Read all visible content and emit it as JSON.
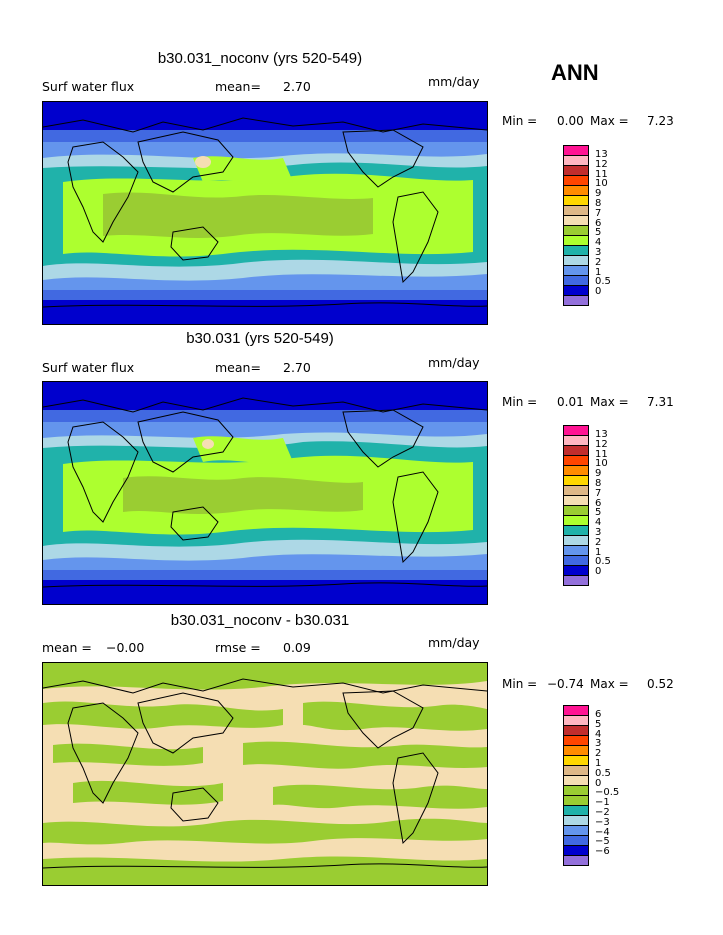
{
  "season_label": "ANN",
  "units": "mm/day",
  "colors": {
    "land_line": "#000000"
  },
  "panels": [
    {
      "title": "b30.031_noconv (yrs 520-549)",
      "left_label": "Surf water flux",
      "stat_label": "mean=",
      "stat_value": "2.70",
      "units": "mm/day",
      "min_label": "Min =",
      "min_value": "0.00",
      "max_label": "Max =",
      "max_value": "7.23",
      "colorbar_labels": [
        "13",
        "12",
        "11",
        "10",
        "9",
        "8",
        "7",
        "6",
        "5",
        "4",
        "3",
        "2",
        "1",
        "0.5",
        "0"
      ],
      "colorbar_colors": [
        "#ff1493",
        "#ffb6c1",
        "#c22d2d",
        "#ff4500",
        "#ff8c00",
        "#ffd700",
        "#deb887",
        "#f5deb3",
        "#9acd32",
        "#adff2f",
        "#20b2aa",
        "#add8e6",
        "#6495ed",
        "#4169e1",
        "#0000cd",
        "#9370db"
      ]
    },
    {
      "title": "b30.031 (yrs 520-549)",
      "left_label": "Surf water flux",
      "stat_label": "mean=",
      "stat_value": "2.70",
      "units": "mm/day",
      "min_label": "Min =",
      "min_value": "0.01",
      "max_label": "Max =",
      "max_value": "7.31",
      "colorbar_labels": [
        "13",
        "12",
        "11",
        "10",
        "9",
        "8",
        "7",
        "6",
        "5",
        "4",
        "3",
        "2",
        "1",
        "0.5",
        "0"
      ],
      "colorbar_colors": [
        "#ff1493",
        "#ffb6c1",
        "#c22d2d",
        "#ff4500",
        "#ff8c00",
        "#ffd700",
        "#deb887",
        "#f5deb3",
        "#9acd32",
        "#adff2f",
        "#20b2aa",
        "#add8e6",
        "#6495ed",
        "#4169e1",
        "#0000cd",
        "#9370db"
      ]
    },
    {
      "title": "b30.031_noconv - b30.031",
      "left_label": "mean =",
      "stat_label": "rmse =",
      "left_value": "−0.00",
      "stat_value": "0.09",
      "units": "mm/day",
      "min_label": "Min =",
      "min_value": "−0.74",
      "max_label": "Max =",
      "max_value": "0.52",
      "colorbar_labels": [
        "6",
        "5",
        "4",
        "3",
        "2",
        "1",
        "0.5",
        "0",
        "−0.5",
        "−1",
        "−2",
        "−3",
        "−4",
        "−5",
        "−6"
      ],
      "colorbar_colors": [
        "#ff1493",
        "#ffb6c1",
        "#c22d2d",
        "#ff4500",
        "#ff8c00",
        "#ffd700",
        "#deb887",
        "#f5deb3",
        "#9acd32",
        "#9acd32",
        "#20b2aa",
        "#add8e6",
        "#6495ed",
        "#4169e1",
        "#0000cd",
        "#9370db"
      ]
    }
  ]
}
